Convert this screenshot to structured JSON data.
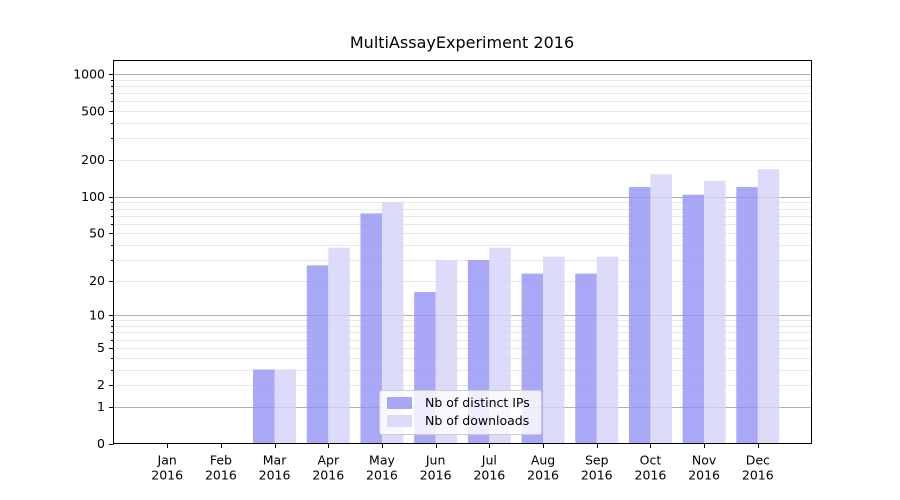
{
  "title": "MultiAssayExperiment 2016",
  "chart_data": {
    "type": "bar",
    "title": "MultiAssayExperiment 2016",
    "categories": [
      "Jan",
      "Feb",
      "Mar",
      "Apr",
      "May",
      "Jun",
      "Jul",
      "Aug",
      "Sep",
      "Oct",
      "Nov",
      "Dec"
    ],
    "category_year": "2016",
    "series": [
      {
        "name": "Nb of distinct IPs",
        "color": "#9292f4",
        "opacity": 0.8,
        "values": [
          0,
          0,
          3,
          27,
          73,
          16,
          30,
          23,
          23,
          120,
          104,
          120
        ]
      },
      {
        "name": "Nb of downloads",
        "color": "#d3d3f9",
        "opacity": 0.8,
        "values": [
          0,
          0,
          3,
          38,
          90,
          30,
          38,
          32,
          32,
          153,
          135,
          168
        ]
      }
    ],
    "y_axis": {
      "scale": "log10(1+x)",
      "tick_values": [
        0,
        1,
        2,
        5,
        10,
        20,
        50,
        100,
        200,
        500,
        1000
      ],
      "major_grid_values": [
        1,
        10,
        100,
        1000
      ],
      "minor_grid_decades": [
        1,
        10,
        100
      ],
      "max": 1000
    },
    "xlabel": "",
    "ylabel": "",
    "grid": true,
    "legend_position": "bottom-center"
  },
  "legend": {
    "items": [
      {
        "label": "Nb of distinct IPs",
        "color": "#9292f4"
      },
      {
        "label": "Nb of downloads",
        "color": "#d3d3f9"
      }
    ]
  },
  "colors": {
    "background": "#ffffff",
    "axis": "#000000",
    "major_grid": "#b0b0b0",
    "minor_grid": "#e8e8e8",
    "tick_text": "#000000"
  }
}
